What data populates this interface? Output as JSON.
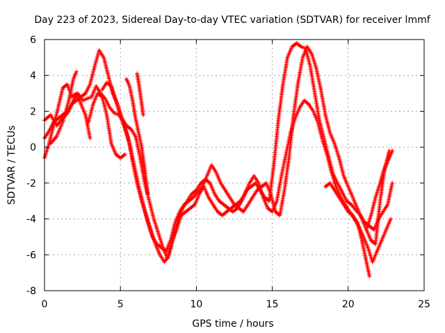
{
  "chart_data": {
    "type": "scatter",
    "title": "Day 223 of 2023, Sidereal Day-to-day VTEC variation (SDTVAR) for receiver lmmf",
    "xlabel": "GPS time / hours",
    "ylabel": "SDTVAR / TECUs",
    "xlim": [
      0,
      25
    ],
    "ylim": [
      -8,
      6
    ],
    "xticks": [
      0,
      5,
      10,
      15,
      20,
      25
    ],
    "yticks": [
      -8,
      -6,
      -4,
      -2,
      0,
      2,
      4,
      6
    ],
    "grid": true,
    "marker": "+",
    "color": "#ff0000",
    "series": [
      {
        "x": [
          0,
          0.3,
          0.6,
          0.9,
          1.2,
          1.5,
          1.8,
          2.1,
          2.4,
          2.7,
          3.0
        ],
        "y": [
          -0.6,
          0.2,
          1.2,
          2.2,
          3.3,
          3.5,
          2.8,
          3.0,
          2.4,
          1.8,
          0.5
        ]
      },
      {
        "x": [
          0,
          0.4,
          0.8,
          1.2,
          1.6,
          1.9,
          2.2,
          2.5,
          2.8,
          3.1,
          3.4,
          3.7,
          4.0,
          4.3,
          4.6,
          4.9,
          5.2,
          5.5,
          5.8,
          6.1,
          6.4,
          6.7,
          7.0,
          7.3,
          7.6,
          7.9,
          8.2,
          8.5,
          8.8,
          9.1,
          9.4,
          9.7,
          10.0,
          10.3,
          10.6,
          10.9,
          11.2,
          11.5,
          11.8,
          12.1,
          12.4,
          12.7,
          13.0,
          13.3,
          13.6,
          13.9,
          14.2,
          14.5,
          14.8,
          15.1,
          15.4,
          15.7,
          16.0,
          16.3,
          16.6,
          16.9,
          17.2,
          17.5,
          17.8,
          18.1,
          18.4,
          18.7,
          19.0,
          19.3,
          19.6,
          19.9,
          20.2,
          20.5,
          20.8,
          21.1,
          21.4,
          21.7,
          22.0,
          22.3,
          22.6,
          22.9
        ],
        "y": [
          1.5,
          1.8,
          1.2,
          1.6,
          2.0,
          2.6,
          3.0,
          2.6,
          2.7,
          2.8,
          3.4,
          3.0,
          2.7,
          2.2,
          1.9,
          1.8,
          1.4,
          0.6,
          -0.8,
          -2.0,
          -3.0,
          -3.8,
          -4.6,
          -5.4,
          -6.0,
          -6.4,
          -6.0,
          -5.0,
          -4.0,
          -3.4,
          -3.0,
          -2.6,
          -2.4,
          -2.0,
          -1.8,
          -2.0,
          -2.6,
          -3.0,
          -3.2,
          -3.4,
          -3.6,
          -3.4,
          -3.0,
          -2.4,
          -2.2,
          -2.0,
          -2.4,
          -2.8,
          -3.0,
          -1.0,
          1.5,
          3.5,
          5.0,
          5.6,
          5.8,
          5.6,
          5.5,
          4.5,
          3.0,
          1.5,
          0.5,
          -0.5,
          -1.5,
          -2.0,
          -2.5,
          -3.0,
          -3.2,
          -3.5,
          -3.8,
          -4.2,
          -4.4,
          -4.6,
          -4.0,
          -3.6,
          -3.2,
          -2.0
        ]
      },
      {
        "x": [
          0,
          0.3,
          0.6,
          0.9,
          1.2,
          1.5,
          1.8,
          2.1,
          2.4,
          2.7,
          3.0,
          3.3,
          3.6,
          3.9,
          4.2,
          4.5,
          4.8,
          5.1,
          5.4,
          5.7,
          6.0,
          6.3,
          6.6,
          6.9,
          7.2,
          7.5,
          7.8,
          8.1,
          8.4,
          8.7,
          9.0,
          9.3,
          9.6,
          9.9,
          10.2,
          10.5,
          10.8,
          11.1,
          11.4,
          11.7,
          12.0,
          12.3,
          12.6,
          12.9,
          13.2,
          13.5,
          13.8,
          14.1,
          14.4,
          14.7,
          15.0,
          15.3,
          15.6,
          15.9,
          16.2,
          16.5,
          16.8,
          17.1,
          17.4,
          17.7,
          18.0,
          18.3,
          18.6,
          18.9,
          19.2,
          19.5,
          19.8,
          20.1,
          20.4,
          20.7,
          21.0,
          21.3,
          21.6,
          21.9,
          22.2,
          22.5,
          22.8
        ],
        "y": [
          0.5,
          0.9,
          1.4,
          1.6,
          1.8,
          2.0,
          2.4,
          2.6,
          2.8,
          3.0,
          3.5,
          4.5,
          5.4,
          5.0,
          4.0,
          3.0,
          2.4,
          1.6,
          1.2,
          1.0,
          0.6,
          -0.6,
          -2.0,
          -3.0,
          -4.0,
          -4.8,
          -5.6,
          -6.2,
          -5.2,
          -4.6,
          -3.8,
          -3.6,
          -3.4,
          -3.2,
          -2.6,
          -2.2,
          -2.8,
          -3.2,
          -3.6,
          -3.8,
          -3.6,
          -3.4,
          -3.2,
          -3.0,
          -2.6,
          -2.0,
          -1.6,
          -2.0,
          -2.8,
          -3.4,
          -3.6,
          -3.0,
          -1.6,
          -0.4,
          0.8,
          1.6,
          2.2,
          2.6,
          2.4,
          2.0,
          1.4,
          0.4,
          -0.4,
          -1.4,
          -2.2,
          -2.8,
          -3.2,
          -3.6,
          -4.0,
          -4.4,
          -5.0,
          -5.6,
          -6.4,
          -5.8,
          -5.2,
          -4.6,
          -4.0
        ]
      },
      {
        "x": [
          3.8,
          4.1,
          4.4,
          4.7,
          5.0,
          5.3,
          5.6,
          5.9,
          6.2,
          6.5,
          6.8,
          7.1,
          7.4,
          7.7,
          8.0,
          8.3,
          8.6,
          8.9,
          9.2,
          9.5,
          9.8,
          10.1,
          10.4,
          10.7,
          11.0,
          11.3,
          11.6,
          11.9,
          12.2,
          12.5,
          12.8,
          13.1,
          13.4,
          13.7,
          14.0,
          14.3,
          14.6,
          14.9,
          15.2,
          15.5,
          15.8,
          16.1,
          16.4,
          16.7,
          17.0,
          17.3,
          17.6,
          17.9,
          18.2,
          18.5,
          18.8,
          19.1,
          19.4,
          19.7,
          20.0,
          20.3,
          20.6,
          20.9,
          21.2,
          21.5,
          21.8,
          22.1,
          22.4,
          22.7
        ],
        "y": [
          3.2,
          3.6,
          3.4,
          2.6,
          1.8,
          1.0,
          0.2,
          -1.0,
          -2.2,
          -3.2,
          -4.2,
          -5.0,
          -5.4,
          -5.6,
          -5.8,
          -5.2,
          -4.2,
          -3.6,
          -3.2,
          -3.0,
          -2.8,
          -2.5,
          -2.2,
          -1.6,
          -1.0,
          -1.4,
          -2.0,
          -2.4,
          -2.8,
          -3.2,
          -3.4,
          -3.6,
          -3.2,
          -2.8,
          -2.4,
          -2.2,
          -2.0,
          -2.6,
          -3.6,
          -3.8,
          -2.4,
          -0.6,
          1.8,
          3.6,
          5.0,
          5.6,
          5.2,
          4.4,
          3.2,
          1.8,
          0.8,
          0.2,
          -0.6,
          -1.6,
          -2.2,
          -2.8,
          -3.4,
          -4.0,
          -4.6,
          -5.2,
          -5.4,
          -3.0,
          -1.2,
          -0.2
        ]
      },
      {
        "x": [
          0.4,
          0.8,
          1.2,
          1.6,
          1.9,
          2.1
        ],
        "y": [
          0.2,
          0.6,
          1.4,
          2.6,
          3.8,
          4.2
        ]
      },
      {
        "x": [
          2.9,
          3.2,
          3.5,
          3.8,
          4.1,
          4.4,
          4.7,
          5.0,
          5.3
        ],
        "y": [
          1.4,
          2.4,
          3.0,
          2.8,
          1.8,
          0.2,
          -0.4,
          -0.6,
          -0.4
        ]
      },
      {
        "x": [
          5.4,
          5.6,
          5.8,
          6.0,
          6.2,
          6.4,
          6.6,
          6.8
        ],
        "y": [
          3.8,
          3.4,
          2.6,
          1.6,
          0.8,
          0.0,
          -1.2,
          -2.6
        ]
      },
      {
        "x": [
          6.1,
          6.2,
          6.3,
          6.4,
          6.5
        ],
        "y": [
          4.1,
          3.6,
          3.0,
          2.4,
          1.8
        ]
      },
      {
        "x": [
          18.5,
          18.8,
          19.1,
          19.4,
          19.7,
          20.0,
          20.3,
          20.6,
          20.9,
          21.2,
          21.4
        ],
        "y": [
          -2.2,
          -2.0,
          -2.4,
          -2.8,
          -3.2,
          -3.6,
          -3.8,
          -4.2,
          -5.2,
          -6.4,
          -7.2
        ]
      },
      {
        "x": [
          21.2,
          21.5,
          21.8,
          22.1,
          22.3,
          22.5,
          22.7,
          22.9
        ],
        "y": [
          -4.6,
          -3.8,
          -2.8,
          -2.0,
          -1.4,
          -1.0,
          -0.6,
          -0.2
        ]
      }
    ]
  }
}
